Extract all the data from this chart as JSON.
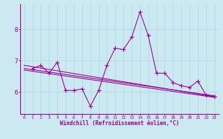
{
  "background_color": "#cce8f0",
  "line_color": "#990099",
  "marker": "+",
  "markersize": 4,
  "linewidth": 0.8,
  "xlabel": "Windchill (Refroidissement éolien,°C)",
  "xlabel_color": "#990099",
  "yticks": [
    6,
    7,
    8
  ],
  "xlim": [
    -0.5,
    23.5
  ],
  "ylim": [
    5.3,
    8.8
  ],
  "grid_color": "#aad8e0",
  "tick_color": "#990099",
  "jagged_y": [
    6.75,
    6.85,
    6.6,
    6.95,
    6.05,
    6.05,
    6.1,
    5.55,
    6.05,
    6.85,
    7.4,
    7.35,
    7.75,
    8.55,
    7.8,
    6.6,
    6.6,
    6.3,
    6.2,
    6.15,
    6.35,
    5.9,
    5.85
  ],
  "trend1": [
    6.75,
    6.15,
    5.85
  ],
  "trend2": [
    6.85,
    6.3,
    5.88
  ],
  "trend3": [
    6.75,
    6.45,
    5.85
  ],
  "xtick_labels": [
    "0",
    "1",
    "2",
    "3",
    "4",
    "5",
    "6",
    "7",
    "8",
    "9",
    "10",
    "11",
    "12",
    "13",
    "14",
    "15",
    "16",
    "17",
    "18",
    "19",
    "20",
    "21",
    "22",
    "23"
  ]
}
